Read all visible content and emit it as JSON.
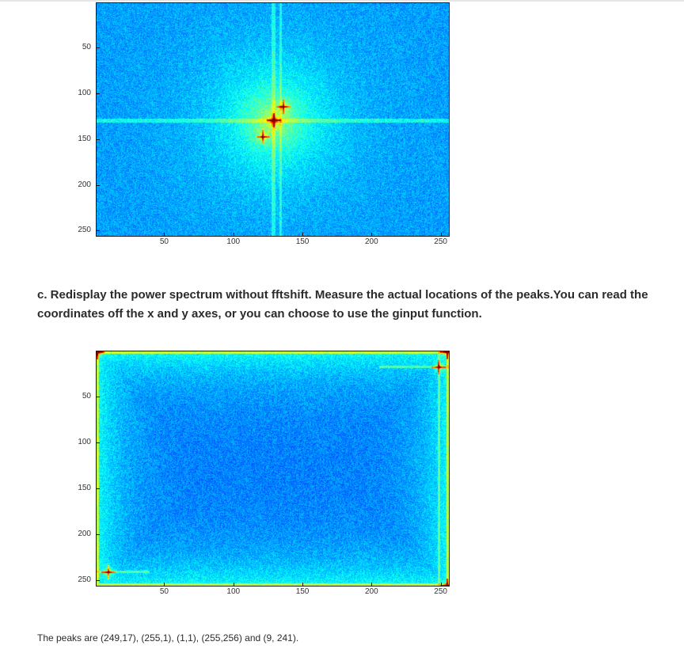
{
  "question": {
    "text": "c. Redisplay the power spectrum without fftshift. Measure the actual locations of the peaks.You can read the coordinates off the x and y axes, or you can choose to use the ginput function."
  },
  "answer": {
    "text": "The peaks are (249,17), (255,1), (1,1), (255,256) and (9, 241)."
  },
  "chart_data": [
    {
      "type": "heatmap",
      "title": "",
      "xlabel": "",
      "ylabel": "",
      "xlim": [
        0.5,
        256.5
      ],
      "ylim": [
        256.5,
        0.5
      ],
      "xticks": [
        50,
        100,
        150,
        200,
        250
      ],
      "yticks": [
        50,
        100,
        150,
        200,
        250
      ],
      "colormap": "jet",
      "peaks": [
        [
          129,
          129
        ],
        [
          136,
          114
        ],
        [
          121,
          147
        ]
      ],
      "cross_lines": {
        "x": [
          129,
          134
        ],
        "y": [
          129,
          131
        ]
      }
    },
    {
      "type": "heatmap",
      "title": "",
      "xlabel": "",
      "ylabel": "",
      "xlim": [
        0.5,
        256.5
      ],
      "ylim": [
        256.5,
        0.5
      ],
      "xticks": [
        50,
        100,
        150,
        200,
        250
      ],
      "yticks": [
        50,
        100,
        150,
        200,
        250
      ],
      "colormap": "jet",
      "peaks": [
        [
          249,
          17
        ],
        [
          255,
          1
        ],
        [
          1,
          1
        ],
        [
          255,
          256
        ],
        [
          9,
          241
        ]
      ]
    }
  ]
}
